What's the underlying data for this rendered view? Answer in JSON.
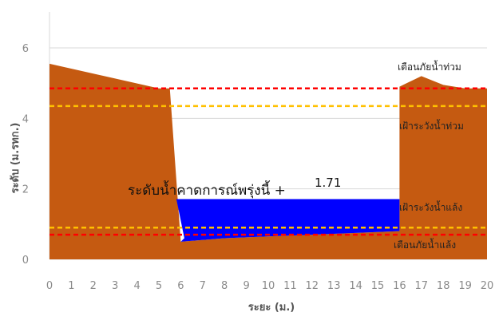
{
  "chart_data": {
    "type": "area",
    "xlabel": "ระยะ (ม.)",
    "ylabel": "ระดับ (ม.รทก.)",
    "xlim": [
      0,
      20
    ],
    "ylim": [
      0,
      7
    ],
    "x_ticks": [
      "0",
      "1",
      "2",
      "3",
      "4",
      "5",
      "6",
      "7",
      "8",
      "9",
      "10",
      "11",
      "12",
      "13",
      "14",
      "15",
      "16",
      "17",
      "18",
      "19",
      "20"
    ],
    "y_ticks": [
      "0",
      "2",
      "4",
      "6"
    ],
    "grid": "horizontal",
    "colors": {
      "ground": "#c55a11",
      "water": "#0000ff",
      "danger_line": "#ff0000",
      "watch_line": "#ffc000",
      "grid": "#d9d9d9"
    },
    "ground_profile": {
      "x": [
        0,
        5,
        5.5,
        6,
        8,
        10,
        12,
        14,
        16,
        16,
        17,
        18,
        19,
        20,
        20
      ],
      "y": [
        5.55,
        4.85,
        4.85,
        0.5,
        0.6,
        0.65,
        0.7,
        0.75,
        0.8,
        4.9,
        5.2,
        4.95,
        4.85,
        4.85,
        0
      ]
    },
    "water_level": {
      "value": 1.71,
      "x_start": 5.8,
      "x_end": 16
    },
    "thresholds": [
      {
        "name": "flood_warning",
        "value": 4.85,
        "color": "#ff0000",
        "style": "dashed"
      },
      {
        "name": "flood_watch",
        "value": 4.35,
        "color": "#ffc000",
        "style": "dashed"
      },
      {
        "name": "drought_watch",
        "value": 0.9,
        "color": "#ffc000",
        "style": "dashed"
      },
      {
        "name": "drought_warning",
        "value": 0.7,
        "color": "#ff0000",
        "style": "dashed"
      }
    ],
    "annotations": {
      "flood_warning": "เตือนภัยน้ำท่วม",
      "flood_watch": "เฝ้าระวังน้ำท่วม",
      "drought_watch": "เฝ้าระวังน้ำแล้ง",
      "drought_warning": "เตือนภัยน้ำแล้ง",
      "forecast_label": "ระดับน้ำคาดการณ์พรุ่งนี้ +",
      "forecast_value": "1.71"
    }
  }
}
